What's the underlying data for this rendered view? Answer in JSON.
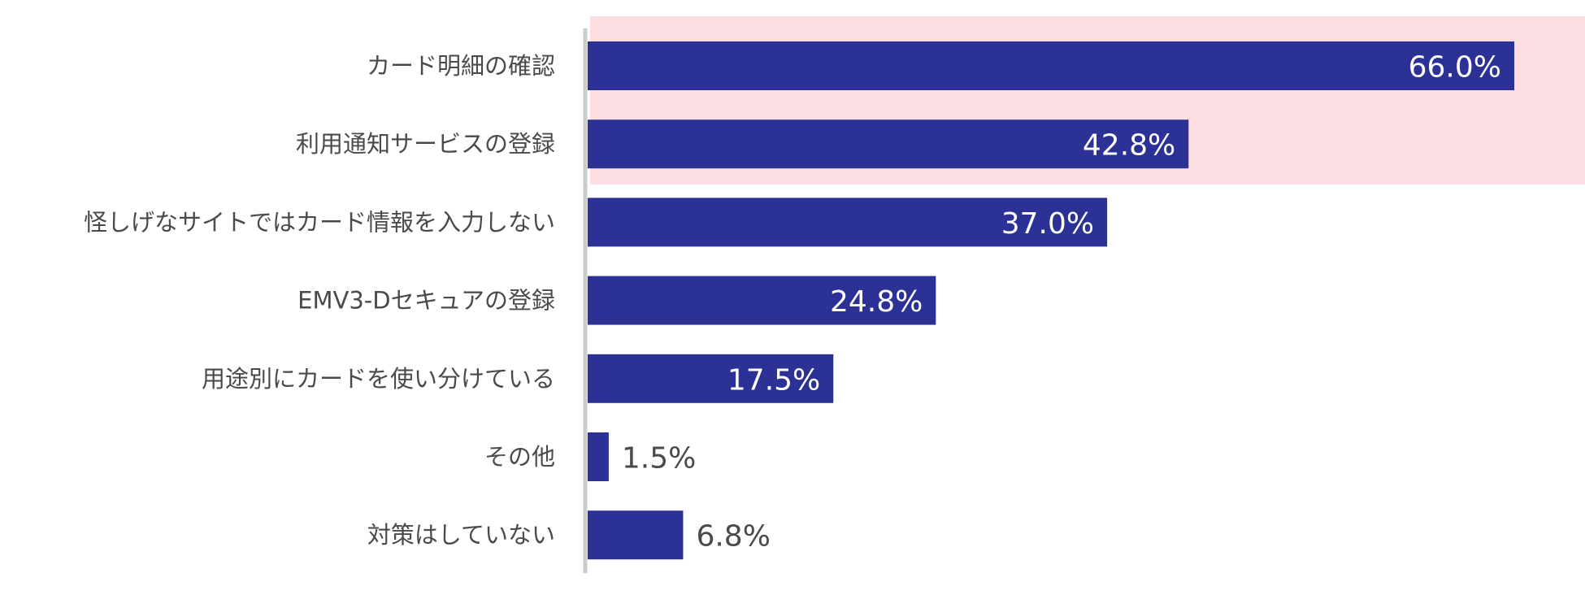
{
  "chart_data": {
    "type": "bar",
    "orientation": "horizontal",
    "categories": [
      "カード明細の確認",
      "利用通知サービスの登録",
      "怪しげなサイトではカード情報を入力しない",
      "EMV3-Dセキュアの登録",
      "用途別にカードを使い分けている",
      "その他",
      "対策はしていない"
    ],
    "values": [
      66.0,
      42.8,
      37.0,
      24.8,
      17.5,
      1.5,
      6.8
    ],
    "value_labels": [
      "66.0%",
      "42.8%",
      "37.0%",
      "24.8%",
      "17.5%",
      "1.5%",
      "6.8%"
    ],
    "xlim": [
      0,
      100
    ],
    "highlighted_categories": [
      0,
      1
    ],
    "grid": false,
    "legend": "none",
    "colors": {
      "bar": "#2b3195",
      "highlight_band": "#fbdde2",
      "axis": "#cccccc",
      "category_text": "#4a4a4a",
      "value_text_inside": "#ffffff",
      "value_text_outside": "#4a4a4a"
    }
  }
}
